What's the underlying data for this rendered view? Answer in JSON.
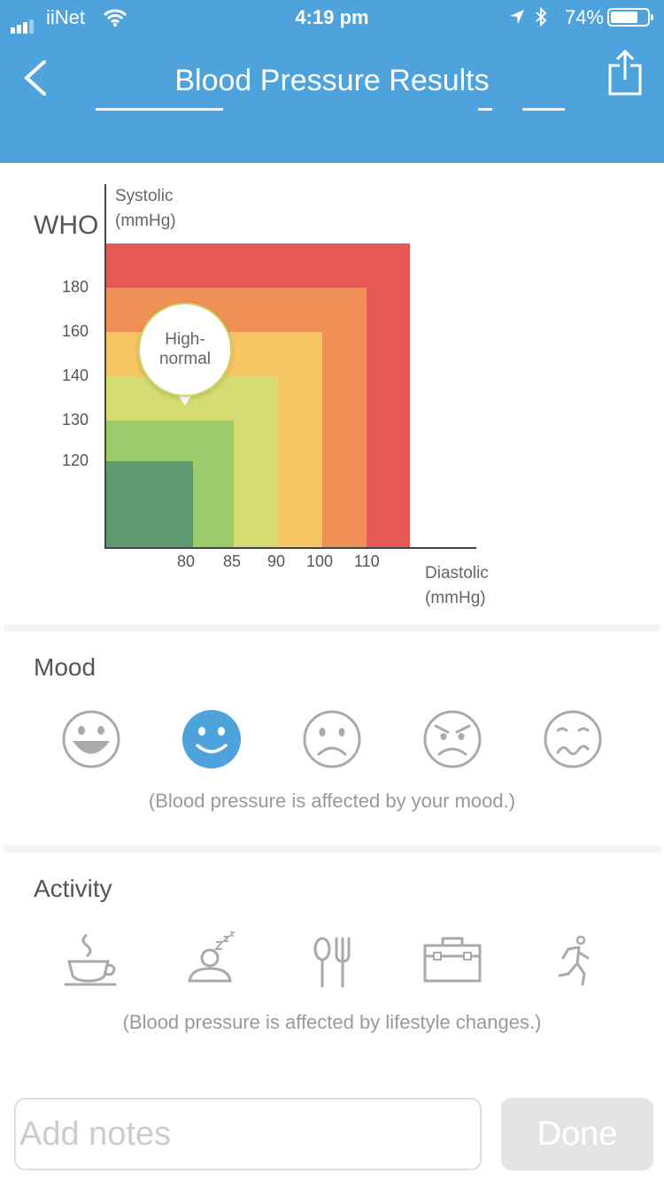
{
  "status_bar": {
    "carrier": "iiNet",
    "time": "4:19 pm",
    "battery_percent": "74%",
    "battery_level": 0.74
  },
  "nav": {
    "title": "Blood Pressure Results",
    "back_icon": "chevron-left-icon",
    "share_icon": "share-icon"
  },
  "chart": {
    "standard": "WHO",
    "y_label_line1": "Systolic",
    "y_label_line2": "(mmHg)",
    "x_label_line1": "Diastolic",
    "x_label_line2": "(mmHg)",
    "y_ticks": [
      "180",
      "160",
      "140",
      "130",
      "120"
    ],
    "x_ticks": [
      "80",
      "85",
      "90",
      "100",
      "110"
    ],
    "indicator_line1": "High-",
    "indicator_line2": "normal",
    "zone_colors": [
      "#e55a57",
      "#ef9156",
      "#f6c564",
      "#d4dc72",
      "#9bcc6c",
      "#5e9a70"
    ]
  },
  "mood": {
    "title": "Mood",
    "caption": "(Blood pressure is affected by your mood.)",
    "selected_index": 1,
    "selected_color": "#4ea3dc",
    "options": [
      "laughing-face-icon",
      "smiling-face-icon",
      "sad-face-icon",
      "angry-face-icon",
      "wavy-mouth-face-icon"
    ]
  },
  "activity": {
    "title": "Activity",
    "caption": "(Blood pressure is affected by lifestyle changes.)",
    "options": [
      "coffee-cup-icon",
      "sleeping-icon",
      "fork-spoon-icon",
      "toolbox-icon",
      "running-icon"
    ]
  },
  "footer": {
    "notes_placeholder": "Add notes",
    "done_label": "Done"
  }
}
